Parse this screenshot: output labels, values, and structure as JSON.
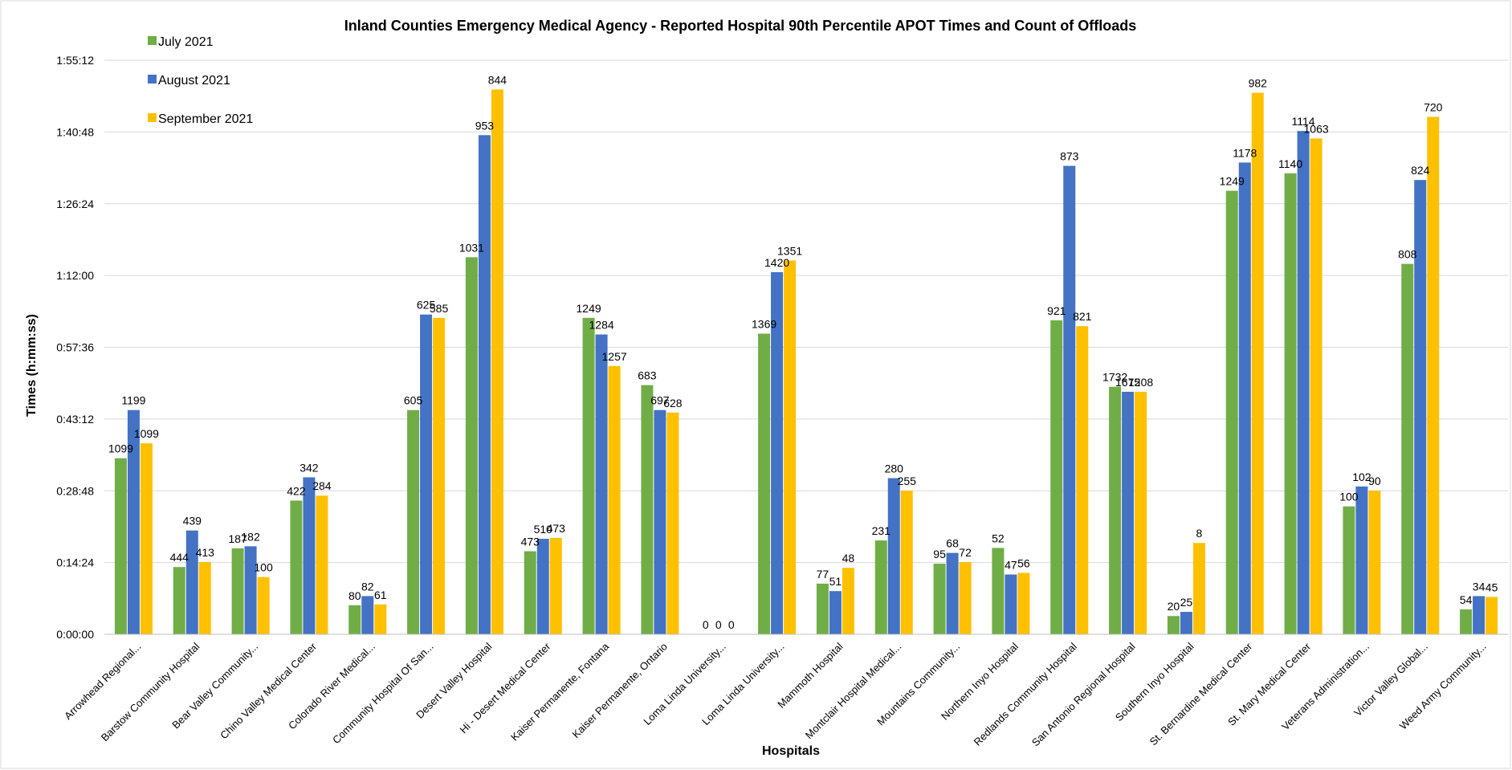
{
  "chart_data": {
    "type": "bar",
    "title": "Inland Counties Emergency Medical Agency - Reported Hospital 90th Percentile APOT Times and Count of Offloads",
    "xlabel": "Hospitals",
    "ylabel": "Times (h:mm:ss)",
    "y_unit": "seconds",
    "ylim": [
      0,
      6912
    ],
    "y_ticks": [
      {
        "value": 0,
        "label": "0:00:00"
      },
      {
        "value": 864,
        "label": "0:14:24"
      },
      {
        "value": 1728,
        "label": "0:28:48"
      },
      {
        "value": 2592,
        "label": "0:43:12"
      },
      {
        "value": 3456,
        "label": "0:57:36"
      },
      {
        "value": 4320,
        "label": "1:12:00"
      },
      {
        "value": 5184,
        "label": "1:26:24"
      },
      {
        "value": 6048,
        "label": "1:40:48"
      },
      {
        "value": 6912,
        "label": "1:55:12"
      }
    ],
    "grid": true,
    "legend_position": "top-left",
    "categories": [
      "Arrowhead Regional...",
      "Barstow Community Hospital",
      "Bear Valley Community...",
      "Chino Valley Medical Center",
      "Colorado River Medical...",
      "Community Hospital Of San...",
      "Desert Valley Hospital",
      "Hi - Desert Medical Center",
      "Kaiser Permanente, Fontana",
      "Kaiser Permanente, Ontario",
      "Loma Linda University...",
      "Loma Linda University...",
      "Mammoth Hospital",
      "Montclair Hospital Medical...",
      "Mountains Community...",
      "Northern Inyo Hospital",
      "Redlands Community Hospital",
      "San Antonio Regional Hospital",
      "Southern Inyo Hospital",
      "St. Bernardine Medical Center",
      "St. Mary Medical Center",
      "Veterans Administration...",
      "Victor Valley Global...",
      "Weed Army Community..."
    ],
    "series": [
      {
        "name": "July 2021",
        "color": "#70AD47",
        "values": [
          2120,
          810,
          1035,
          1610,
          350,
          2700,
          4540,
          1000,
          3810,
          3000,
          0,
          3620,
          610,
          1130,
          850,
          1040,
          3780,
          2980,
          220,
          5340,
          5550,
          1540,
          4460,
          300
        ],
        "labels": [
          "1099",
          "444",
          "187",
          "422",
          "80",
          "605",
          "1031",
          "473",
          "1249",
          "683",
          "0",
          "1369",
          "77",
          "231",
          "95",
          "52",
          "921",
          "1732",
          "20",
          "1249",
          "1140",
          "100",
          "808",
          "54"
        ]
      },
      {
        "name": "August 2021",
        "color": "#4472C4",
        "values": [
          2700,
          1250,
          1060,
          1890,
          460,
          3850,
          6010,
          1150,
          3610,
          2700,
          0,
          4360,
          520,
          1880,
          980,
          720,
          5640,
          2920,
          270,
          5680,
          6060,
          1780,
          5470,
          460
        ],
        "labels": [
          "1199",
          "439",
          "182",
          "342",
          "82",
          "625",
          "953",
          "510",
          "1284",
          "697",
          "0",
          "1420",
          "51",
          "280",
          "68",
          "47",
          "873",
          "1675",
          "25",
          "1178",
          "1114",
          "102",
          "824",
          "34"
        ]
      },
      {
        "name": "September 2021",
        "color": "#FFC000",
        "values": [
          2300,
          870,
          690,
          1670,
          360,
          3810,
          6560,
          1160,
          3230,
          2670,
          0,
          4500,
          800,
          1730,
          870,
          740,
          3710,
          2920,
          1100,
          6520,
          5970,
          1730,
          6230,
          450
        ],
        "labels": [
          "1099",
          "413",
          "100",
          "284",
          "61",
          "585",
          "844",
          "473",
          "1257",
          "628",
          "0",
          "1351",
          "48",
          "255",
          "72",
          "56",
          "821",
          "1208",
          "8",
          "982",
          "1063",
          "90",
          "720",
          "45"
        ]
      }
    ]
  }
}
